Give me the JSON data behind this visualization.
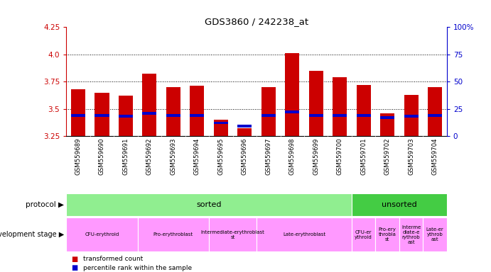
{
  "title": "GDS3860 / 242238_at",
  "samples": [
    "GSM559689",
    "GSM559690",
    "GSM559691",
    "GSM559692",
    "GSM559693",
    "GSM559694",
    "GSM559695",
    "GSM559696",
    "GSM559697",
    "GSM559698",
    "GSM559699",
    "GSM559700",
    "GSM559701",
    "GSM559702",
    "GSM559703",
    "GSM559704"
  ],
  "red_values": [
    3.68,
    3.65,
    3.62,
    3.82,
    3.7,
    3.71,
    3.4,
    3.32,
    3.7,
    4.01,
    3.85,
    3.79,
    3.72,
    3.46,
    3.63,
    3.7
  ],
  "blue_values": [
    3.44,
    3.44,
    3.43,
    3.46,
    3.44,
    3.44,
    3.37,
    3.34,
    3.44,
    3.47,
    3.44,
    3.44,
    3.44,
    3.42,
    3.43,
    3.44
  ],
  "ymin": 3.25,
  "ymax": 4.25,
  "y2min": 0,
  "y2max": 100,
  "yticks": [
    3.25,
    3.5,
    3.75,
    4.0,
    4.25
  ],
  "y2ticks": [
    0,
    25,
    50,
    75,
    100
  ],
  "protocol": [
    {
      "label": "sorted",
      "start": 0,
      "end": 12,
      "color": "#90ee90"
    },
    {
      "label": "unsorted",
      "start": 12,
      "end": 16,
      "color": "#44cc44"
    }
  ],
  "dev_stage": [
    {
      "label": "CFU-erythroid",
      "start": 0,
      "end": 3,
      "color": "#ff99ff"
    },
    {
      "label": "Pro-erythroblast",
      "start": 3,
      "end": 6,
      "color": "#ff99ff"
    },
    {
      "label": "Intermediate-erythroblast\nst",
      "start": 6,
      "end": 8,
      "color": "#ff99ff"
    },
    {
      "label": "Late-erythroblast",
      "start": 8,
      "end": 12,
      "color": "#ff99ff"
    },
    {
      "label": "CFU-er\nythroid",
      "start": 12,
      "end": 13,
      "color": "#ff99ff"
    },
    {
      "label": "Pro-ery\nthrobla\nst",
      "start": 13,
      "end": 14,
      "color": "#ff99ff"
    },
    {
      "label": "Interme\ndiate-e\nrythrob\nast",
      "start": 14,
      "end": 15,
      "color": "#ff99ff"
    },
    {
      "label": "Late-er\nythrob\nast",
      "start": 15,
      "end": 16,
      "color": "#ff99ff"
    }
  ],
  "bar_color": "#cc0000",
  "blue_color": "#0000cc",
  "bg_color": "#ffffff",
  "tick_label_color_left": "#cc0000",
  "tick_label_color_right": "#0000cc",
  "bar_width": 0.6,
  "xtick_bg_color": "#c8c8c8"
}
